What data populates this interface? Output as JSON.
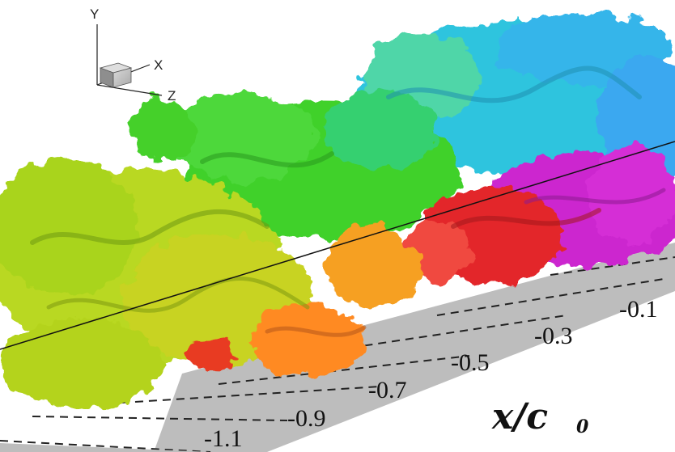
{
  "figure": {
    "triad": {
      "y_label": "Y",
      "x_label": "X",
      "z_label": "Z"
    },
    "axis": {
      "label_main": "x/c",
      "label_sub": "0",
      "ticks": [
        "-0.1",
        "-0.3",
        "-0.5",
        "-0.7",
        "-0.9",
        "-1.1"
      ]
    },
    "colors": {
      "background": "#ffffff",
      "plate": "#bdbdbd",
      "vortex_yellow_green": "#b9d820",
      "vortex_green": "#3fd12c",
      "vortex_cyan": "#2fc4de",
      "vortex_red": "#e3262b",
      "vortex_magenta": "#cc26cf",
      "vortex_orange": "#ff8a22"
    }
  }
}
